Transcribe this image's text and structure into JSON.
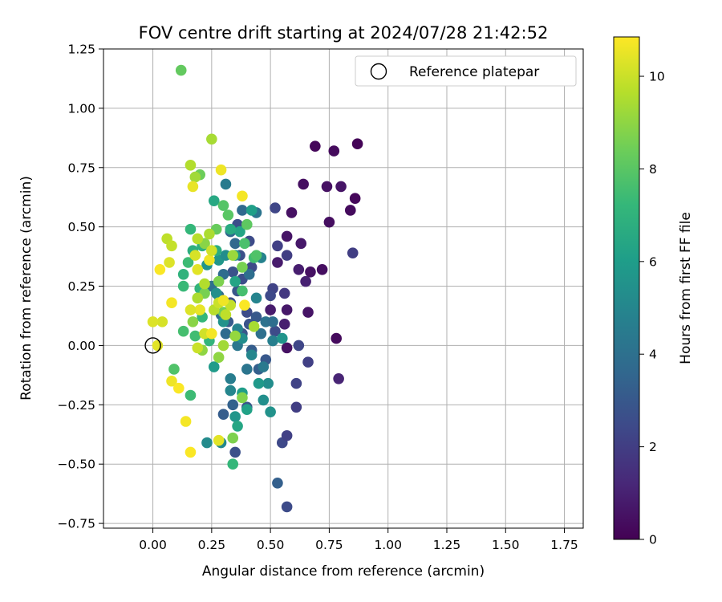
{
  "chart_data": {
    "type": "scatter",
    "title": "FOV centre drift starting at 2024/07/28 21:42:52",
    "xlabel": "Angular distance from reference (arcmin)",
    "ylabel": "Rotation from reference (arcmin)",
    "xlim": [
      -0.21,
      1.83
    ],
    "ylim": [
      -0.77,
      1.25
    ],
    "xticks": [
      "0.00",
      "0.25",
      "0.50",
      "0.75",
      "1.00",
      "1.25",
      "1.50",
      "1.75"
    ],
    "yticks": [
      "−0.75",
      "−0.50",
      "−0.25",
      "0.00",
      "0.25",
      "0.50",
      "0.75",
      "1.00",
      "1.25"
    ],
    "grid": true,
    "legend": {
      "placement": "top-right",
      "entries": [
        "Reference platepar"
      ]
    },
    "reference_point": {
      "x": 0.0,
      "y": 0.0,
      "name": "Reference platepar"
    },
    "colorbar": {
      "label": "Hours from first FF file",
      "range": [
        0,
        10.85
      ],
      "ticks": [
        "0",
        "2",
        "4",
        "6",
        "8",
        "10"
      ],
      "colormap": "viridis",
      "colors": [
        "#440154",
        "#482878",
        "#3e4989",
        "#31688e",
        "#26828e",
        "#1f9e89",
        "#35b779",
        "#6ece58",
        "#b5de2b",
        "#fde725"
      ]
    },
    "points": [
      [
        0.87,
        0.85,
        0.1
      ],
      [
        0.69,
        0.84,
        0.2
      ],
      [
        0.77,
        0.82,
        0.3
      ],
      [
        0.64,
        0.68,
        0.4
      ],
      [
        0.74,
        0.67,
        0.5
      ],
      [
        0.8,
        0.67,
        0.6
      ],
      [
        0.86,
        0.62,
        0.2
      ],
      [
        0.84,
        0.57,
        0.3
      ],
      [
        0.75,
        0.52,
        0.4
      ],
      [
        0.59,
        0.56,
        0.5
      ],
      [
        0.57,
        0.46,
        0.6
      ],
      [
        0.63,
        0.43,
        0.7
      ],
      [
        0.53,
        0.35,
        0.8
      ],
      [
        0.62,
        0.32,
        0.9
      ],
      [
        0.67,
        0.31,
        0.5
      ],
      [
        0.72,
        0.32,
        0.4
      ],
      [
        0.65,
        0.27,
        1.0
      ],
      [
        0.57,
        0.15,
        0.7
      ],
      [
        0.5,
        0.15,
        0.8
      ],
      [
        0.56,
        0.09,
        0.9
      ],
      [
        0.66,
        0.14,
        0.6
      ],
      [
        0.78,
        0.03,
        0.3
      ],
      [
        0.57,
        -0.01,
        0.5
      ],
      [
        0.79,
        -0.14,
        1.1
      ],
      [
        0.85,
        0.39,
        2.0
      ],
      [
        0.52,
        0.58,
        2.3
      ],
      [
        0.53,
        0.42,
        2.1
      ],
      [
        0.57,
        0.38,
        2.0
      ],
      [
        0.51,
        0.24,
        2.2
      ],
      [
        0.56,
        0.22,
        1.8
      ],
      [
        0.5,
        0.21,
        2.4
      ],
      [
        0.52,
        0.06,
        2.5
      ],
      [
        0.62,
        0.0,
        2.3
      ],
      [
        0.66,
        -0.07,
        2.1
      ],
      [
        0.61,
        -0.16,
        2.2
      ],
      [
        0.61,
        -0.26,
        2.0
      ],
      [
        0.55,
        -0.41,
        2.4
      ],
      [
        0.57,
        -0.38,
        2.1
      ],
      [
        0.57,
        -0.68,
        2.5
      ],
      [
        0.53,
        -0.58,
        3.3
      ],
      [
        0.36,
        0.51,
        2.6
      ],
      [
        0.41,
        0.44,
        2.5
      ],
      [
        0.37,
        0.38,
        2.7
      ],
      [
        0.34,
        0.31,
        2.8
      ],
      [
        0.42,
        0.33,
        2.4
      ],
      [
        0.38,
        0.28,
        2.6
      ],
      [
        0.36,
        0.23,
        2.9
      ],
      [
        0.33,
        0.18,
        2.7
      ],
      [
        0.4,
        0.14,
        2.5
      ],
      [
        0.44,
        0.12,
        3.0
      ],
      [
        0.41,
        0.09,
        2.8
      ],
      [
        0.32,
        0.1,
        3.1
      ],
      [
        0.38,
        0.05,
        2.9
      ],
      [
        0.42,
        -0.02,
        3.2
      ],
      [
        0.48,
        -0.06,
        3.0
      ],
      [
        0.45,
        -0.1,
        3.3
      ],
      [
        0.4,
        -0.26,
        2.9
      ],
      [
        0.35,
        -0.45,
        2.7
      ],
      [
        0.34,
        -0.25,
        3.4
      ],
      [
        0.3,
        -0.29,
        3.2
      ],
      [
        0.33,
        0.48,
        3.6
      ],
      [
        0.38,
        0.57,
        3.7
      ],
      [
        0.44,
        0.56,
        4.2
      ],
      [
        0.35,
        0.43,
        3.6
      ],
      [
        0.41,
        0.3,
        3.9
      ],
      [
        0.3,
        0.3,
        3.8
      ],
      [
        0.28,
        0.21,
        3.6
      ],
      [
        0.29,
        0.13,
        3.7
      ],
      [
        0.48,
        0.1,
        4.1
      ],
      [
        0.51,
        0.1,
        3.9
      ],
      [
        0.46,
        0.05,
        4.0
      ],
      [
        0.36,
        0.0,
        4.3
      ],
      [
        0.47,
        -0.09,
        4.4
      ],
      [
        0.4,
        -0.1,
        4.2
      ],
      [
        0.33,
        -0.14,
        4.6
      ],
      [
        0.31,
        0.05,
        3.8
      ],
      [
        0.25,
        0.25,
        4.0
      ],
      [
        0.31,
        0.68,
        4.5
      ],
      [
        0.51,
        0.02,
        4.7
      ],
      [
        0.46,
        0.37,
        4.8
      ],
      [
        0.42,
        -0.04,
        5.0
      ],
      [
        0.36,
        0.07,
        4.9
      ],
      [
        0.33,
        -0.19,
        5.0
      ],
      [
        0.23,
        -0.41,
        5.2
      ],
      [
        0.29,
        -0.41,
        5.1
      ],
      [
        0.38,
        0.03,
        5.3
      ],
      [
        0.3,
        0.1,
        5.5
      ],
      [
        0.27,
        0.22,
        5.4
      ],
      [
        0.23,
        0.34,
        5.6
      ],
      [
        0.28,
        0.36,
        5.7
      ],
      [
        0.31,
        0.38,
        5.3
      ],
      [
        0.35,
        0.38,
        5.5
      ],
      [
        0.49,
        -0.16,
        5.3
      ],
      [
        0.5,
        -0.28,
        5.5
      ],
      [
        0.47,
        -0.23,
        5.4
      ],
      [
        0.55,
        0.03,
        5.6
      ],
      [
        0.45,
        -0.16,
        5.8
      ],
      [
        0.35,
        -0.3,
        5.7
      ],
      [
        0.26,
        -0.09,
        5.9
      ],
      [
        0.38,
        -0.2,
        6.0
      ],
      [
        0.4,
        -0.27,
        6.2
      ],
      [
        0.36,
        -0.34,
        6.4
      ],
      [
        0.42,
        0.57,
        6.1
      ],
      [
        0.37,
        0.48,
        6.3
      ],
      [
        0.33,
        0.49,
        6.6
      ],
      [
        0.26,
        0.61,
        6.5
      ],
      [
        0.27,
        0.4,
        6.7
      ],
      [
        0.21,
        0.42,
        6.9
      ],
      [
        0.17,
        0.4,
        6.8
      ],
      [
        0.13,
        0.3,
        7.0
      ],
      [
        0.2,
        0.24,
        7.1
      ],
      [
        0.16,
        0.49,
        7.2
      ],
      [
        0.13,
        0.25,
        7.3
      ],
      [
        0.15,
        0.35,
        7.4
      ],
      [
        0.21,
        0.12,
        7.2
      ],
      [
        0.18,
        0.04,
        7.5
      ],
      [
        0.13,
        0.06,
        7.6
      ],
      [
        0.24,
        0.02,
        7.1
      ],
      [
        0.34,
        -0.5,
        7.2
      ],
      [
        0.09,
        -0.1,
        7.8
      ],
      [
        0.16,
        -0.21,
        7.4
      ],
      [
        0.12,
        1.16,
        8.2
      ],
      [
        0.43,
        0.37,
        7.5
      ],
      [
        0.38,
        0.23,
        7.6
      ],
      [
        0.3,
        0.59,
        7.9
      ],
      [
        0.39,
        0.43,
        7.7
      ],
      [
        0.32,
        0.55,
        8.0
      ],
      [
        0.4,
        0.51,
        8.1
      ],
      [
        0.44,
        0.38,
        7.8
      ],
      [
        0.27,
        0.49,
        8.3
      ],
      [
        0.2,
        0.72,
        8.4
      ],
      [
        0.38,
        0.33,
        8.6
      ],
      [
        0.3,
        0.14,
        8.5
      ],
      [
        0.28,
        0.27,
        8.7
      ],
      [
        0.22,
        0.22,
        8.6
      ],
      [
        0.17,
        0.1,
        8.9
      ],
      [
        0.38,
        -0.22,
        8.8
      ],
      [
        0.34,
        -0.39,
        8.7
      ],
      [
        0.21,
        -0.02,
        9.0
      ],
      [
        0.22,
        0.43,
        8.9
      ],
      [
        0.18,
        0.71,
        9.3
      ],
      [
        0.34,
        0.38,
        9.2
      ],
      [
        0.25,
        0.87,
        9.4
      ],
      [
        0.35,
        0.04,
        9.1
      ],
      [
        0.28,
        -0.05,
        9.0
      ],
      [
        0.16,
        0.76,
        9.6
      ],
      [
        0.24,
        0.47,
        9.5
      ],
      [
        0.19,
        0.45,
        9.7
      ],
      [
        0.06,
        0.45,
        9.8
      ],
      [
        0.08,
        0.42,
        9.9
      ],
      [
        0.22,
        0.26,
        9.6
      ],
      [
        0.26,
        0.15,
        9.7
      ],
      [
        0.31,
        0.13,
        9.8
      ],
      [
        0.33,
        0.17,
        9.9
      ],
      [
        0.28,
        0.18,
        10.0
      ],
      [
        0.19,
        0.2,
        9.5
      ],
      [
        0.22,
        0.05,
        10.1
      ],
      [
        0.19,
        -0.01,
        10.0
      ],
      [
        0.43,
        0.08,
        9.4
      ],
      [
        0.04,
        0.1,
        10.2
      ],
      [
        0.0,
        0.1,
        10.3
      ],
      [
        0.02,
        0.0,
        10.4
      ],
      [
        0.07,
        0.35,
        10.3
      ],
      [
        0.17,
        0.67,
        10.5
      ],
      [
        0.29,
        0.74,
        10.6
      ],
      [
        0.38,
        0.63,
        10.7
      ],
      [
        0.18,
        0.38,
        10.2
      ],
      [
        0.24,
        0.36,
        10.6
      ],
      [
        0.19,
        0.32,
        10.4
      ],
      [
        0.03,
        0.32,
        10.8
      ],
      [
        0.08,
        0.18,
        10.7
      ],
      [
        0.25,
        0.4,
        10.1
      ],
      [
        0.2,
        0.15,
        10.5
      ],
      [
        0.16,
        0.15,
        10.3
      ],
      [
        0.39,
        0.17,
        10.8
      ],
      [
        0.3,
        0.19,
        10.6
      ],
      [
        0.25,
        0.05,
        10.7
      ],
      [
        0.08,
        -0.15,
        10.6
      ],
      [
        0.11,
        -0.18,
        10.8
      ],
      [
        0.14,
        -0.32,
        10.7
      ],
      [
        0.16,
        -0.45,
        10.8
      ],
      [
        0.28,
        -0.4,
        10.4
      ],
      [
        0.3,
        0.0,
        9.3
      ],
      [
        0.35,
        0.27,
        6.3
      ],
      [
        0.44,
        0.2,
        4.9
      ]
    ]
  }
}
